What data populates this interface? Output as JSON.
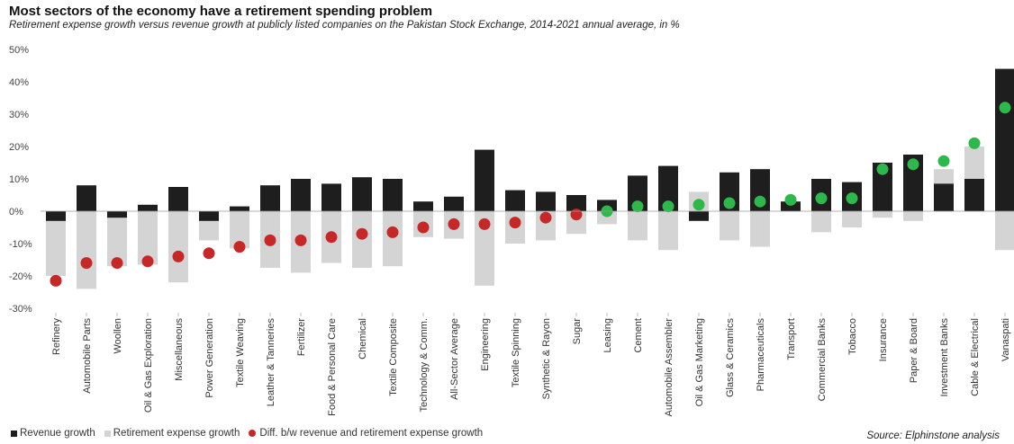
{
  "title": "Most sectors of the economy have a retirement spending problem",
  "subtitle": "Retirement expense growth versus revenue growth at publicly listed companies on the Pakistan Stock Exchange, 2014-2021 annual average, in %",
  "legend": {
    "revenue": "Revenue growth",
    "retirement": "Retirement expense growth",
    "diff": "Diff. b/w revenue and retirement expense growth"
  },
  "source": "Source: Elphinstone analysis",
  "colors": {
    "revenue": "#1e1e1e",
    "retirement": "#d4d4d4",
    "diff_negative": "#c62828",
    "diff_positive": "#2eb84b"
  },
  "chart_data": {
    "type": "bar",
    "ylim": [
      -30,
      50
    ],
    "yticks": [
      {
        "value": 50,
        "label": "50%"
      },
      {
        "value": 40,
        "label": "40%"
      },
      {
        "value": 30,
        "label": "30%"
      },
      {
        "value": 20,
        "label": "20%"
      },
      {
        "value": 10,
        "label": "10%"
      },
      {
        "value": 0,
        "label": "0%"
      },
      {
        "value": -10,
        "label": "-10%"
      },
      {
        "value": -20,
        "label": "-20%"
      },
      {
        "value": -30,
        "label": "-30%"
      }
    ],
    "grid": false,
    "legend_position": "bottom-left",
    "categories": [
      "Refinery",
      "Automobile Parts",
      "Woollen",
      "Oil & Gas Exploration",
      "Miscellaneous",
      "Power Generation",
      "Textile Weaving",
      "Leather & Tanneries",
      "Fertilizer",
      "Food & Personal Care",
      "Chemical",
      "Textile Composite",
      "Technology & Comm.",
      "All-Sector Average",
      "Engineering",
      "Textile Spinning",
      "Synthetic & Rayon",
      "Sugar",
      "Leasing",
      "Cement",
      "Automobile Assembler",
      "Oil & Gas Marketing",
      "Glass & Ceramics",
      "Pharmaceuticals",
      "Transport",
      "Commercial Banks",
      "Tobacco",
      "Insurance",
      "Paper & Board",
      "Investment Banks",
      "Cable & Electrical",
      "Vanaspati"
    ],
    "series": [
      {
        "name": "Revenue growth",
        "type": "bar",
        "values": [
          -3,
          8,
          -2,
          2,
          7.5,
          -3,
          1.5,
          8,
          10,
          8.5,
          10.5,
          10,
          3,
          4.5,
          19,
          6.5,
          6,
          5,
          3.5,
          11,
          14,
          -3,
          12,
          13,
          3,
          10,
          9,
          15,
          17.5,
          8.5,
          10,
          44
        ]
      },
      {
        "name": "Retirement expense growth",
        "type": "bar",
        "values": [
          -20,
          -24,
          -17,
          -16.5,
          -22,
          -9,
          -11.5,
          -17.5,
          -19,
          -16,
          -17.5,
          -17,
          -8,
          -8.5,
          -23,
          -10,
          -9,
          -7,
          -4,
          -9,
          -12,
          6,
          -9,
          -11,
          1,
          -6.5,
          -5,
          -2,
          -3,
          13,
          20,
          -12
        ]
      },
      {
        "name": "Diff. b/w revenue and retirement expense growth",
        "type": "dot",
        "values": [
          -21.5,
          -16,
          -16,
          -15.5,
          -14,
          -13,
          -11,
          -9,
          -9,
          -8,
          -7,
          -6.5,
          -5,
          -4,
          -4,
          -3.5,
          -2,
          -1,
          0,
          1.5,
          1.5,
          2,
          2.5,
          3,
          3.5,
          4,
          4,
          13,
          14.5,
          15.5,
          21,
          32
        ]
      }
    ]
  }
}
